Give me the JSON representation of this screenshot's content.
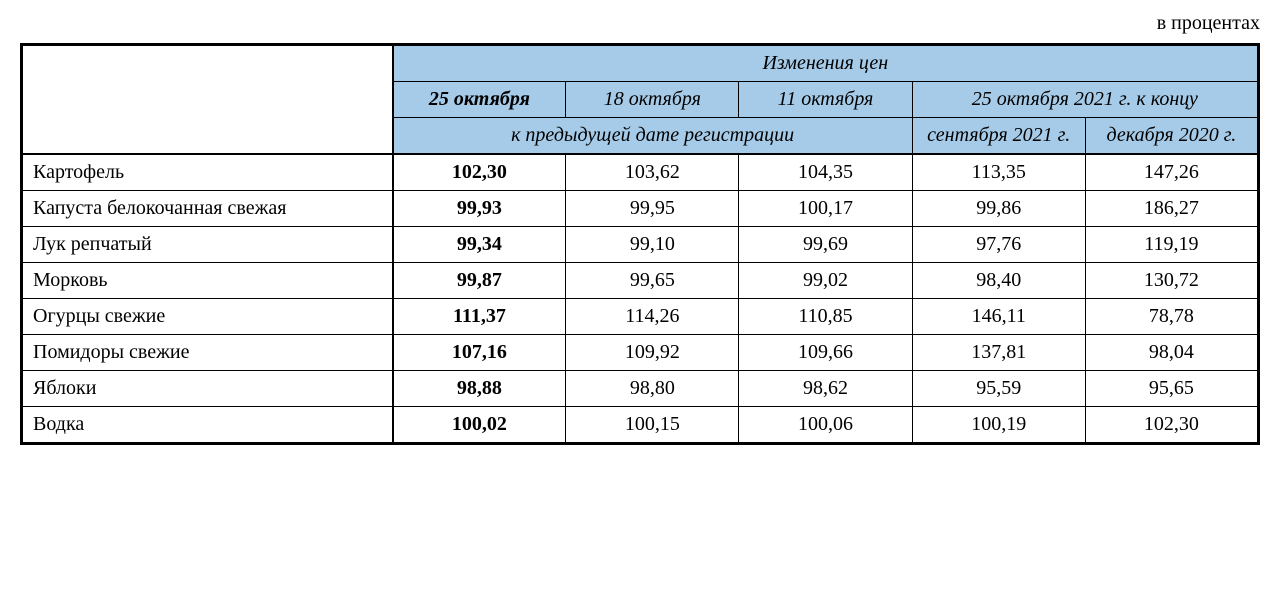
{
  "caption": "в процентах",
  "header": {
    "top": "Изменения цен",
    "dates": {
      "d1": "25 октября",
      "d2": "18 октября",
      "d3": "11 октября"
    },
    "compare_header": "25 октября 2021 г. к концу",
    "prev_reg": "к предыдущей дате регистрации",
    "ref1": "сентября 2021 г.",
    "ref2": "декабря 2020 г."
  },
  "rows": [
    {
      "label": "Картофель",
      "v1": "102,30",
      "v2": "103,62",
      "v3": "104,35",
      "v4": "113,35",
      "v5": "147,26"
    },
    {
      "label": "Капуста белокочанная свежая",
      "v1": "99,93",
      "v2": "99,95",
      "v3": "100,17",
      "v4": "99,86",
      "v5": "186,27"
    },
    {
      "label": "Лук репчатый",
      "v1": "99,34",
      "v2": "99,10",
      "v3": "99,69",
      "v4": "97,76",
      "v5": "119,19"
    },
    {
      "label": "Морковь",
      "v1": "99,87",
      "v2": "99,65",
      "v3": "99,02",
      "v4": "98,40",
      "v5": "130,72"
    },
    {
      "label": "Огурцы свежие",
      "v1": "111,37",
      "v2": "114,26",
      "v3": "110,85",
      "v4": "146,11",
      "v5": "78,78"
    },
    {
      "label": "Помидоры свежие",
      "v1": "107,16",
      "v2": "109,92",
      "v3": "109,66",
      "v4": "137,81",
      "v5": "98,04"
    },
    {
      "label": "Яблоки",
      "v1": "98,88",
      "v2": "98,80",
      "v3": "98,62",
      "v4": "95,59",
      "v5": "95,65"
    },
    {
      "label": "Водка",
      "v1": "100,02",
      "v2": "100,15",
      "v3": "100,06",
      "v4": "100,19",
      "v5": "102,30"
    }
  ],
  "style": {
    "header_bg": "#a6cbe8",
    "border_color": "#000000",
    "font_family": "Times New Roman",
    "body_fontsize": 20,
    "bold_col_index": 1
  }
}
